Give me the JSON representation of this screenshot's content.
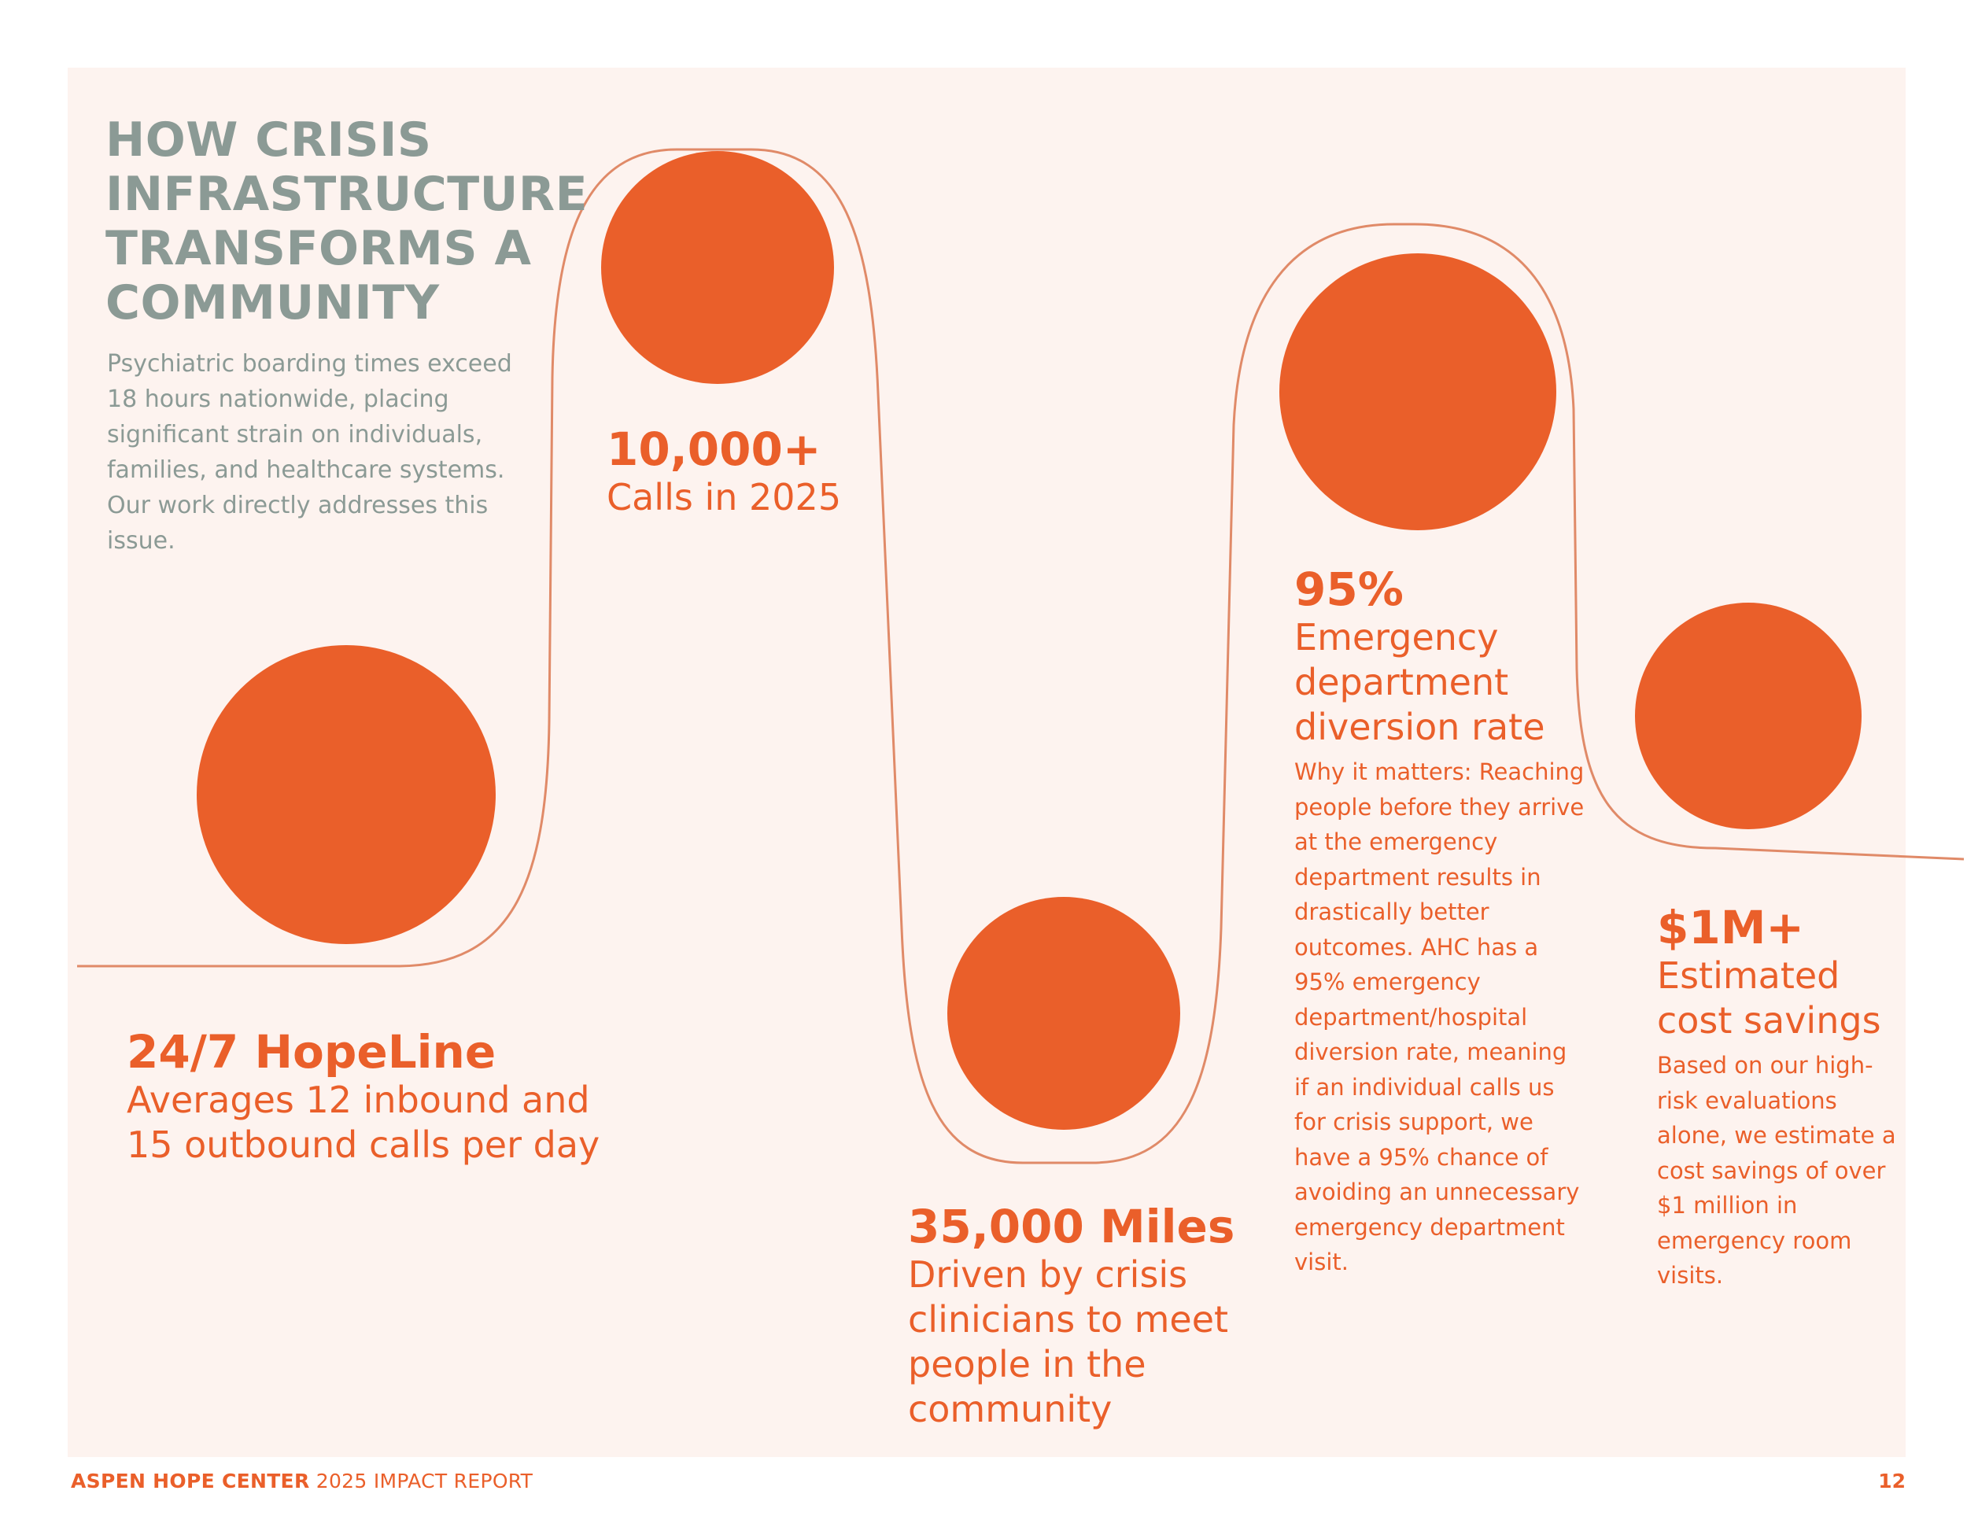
{
  "heading": "HOW CRISIS INFRASTRUCTURE TRANSFORMS A COMMUNITY",
  "intro": "Psychiatric boarding times exceed 18 hours nationwide, placing significant strain on individuals, families, and healthcare systems. Our work directly addresses this issue.",
  "stats": [
    {
      "big": "24/7 HopeLine",
      "sub": "Averages 12 inbound and 15 outbound calls per day"
    },
    {
      "big": "10,000+",
      "sub": "Calls in 2025"
    },
    {
      "big": "35,000 Miles",
      "sub": "Driven by crisis clinicians to meet people in the community"
    },
    {
      "big": "95%",
      "sub": "Emergency department diversion rate",
      "body": "Why it matters: Reaching people before they arrive at the emergency department results in drastically better outcomes. AHC has a 95% emergency department/hospital diversion rate, meaning if an individual calls us for crisis support, we have a 95% chance of avoiding an unnecessary emergency department visit."
    },
    {
      "big": "$1M+",
      "sub": "Estimated cost savings",
      "body": "Based on our high-risk evaluations alone, we estimate a cost savings of over $1 million in emergency room visits."
    }
  ],
  "footer": {
    "org": "ASPEN HOPE CENTER",
    "report": "2025 IMPACT REPORT",
    "page": "12"
  },
  "colors": {
    "accent": "#ea5f2a",
    "heading": "#8b9a95",
    "panel": "#fdf3ef",
    "line": "#e08a68"
  }
}
